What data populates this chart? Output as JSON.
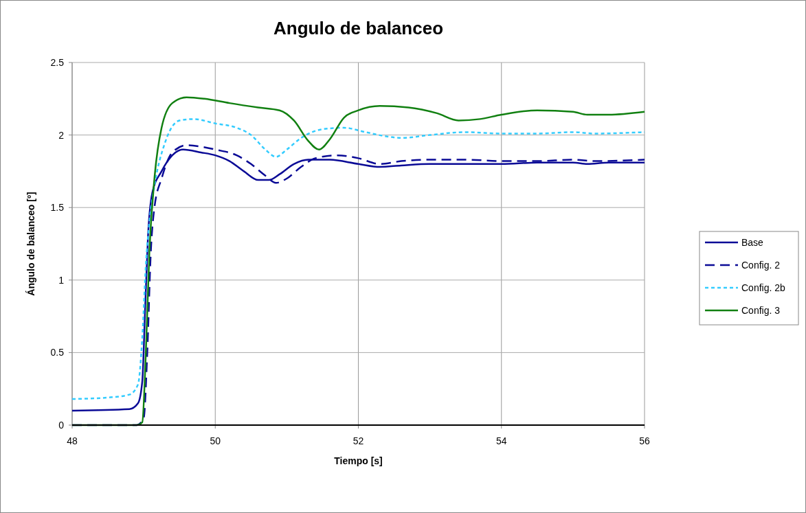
{
  "chart_data": {
    "type": "line",
    "title": "Angulo de balanceo",
    "xlabel": "Tiempo [s]",
    "ylabel": "Ángulo de balanceo [º]",
    "xlim": [
      48,
      56
    ],
    "xticks": [
      48,
      50,
      52,
      54,
      56
    ],
    "ylim": [
      0,
      2.5
    ],
    "yticks": [
      0,
      0.5,
      1,
      1.5,
      2,
      2.5
    ],
    "grid": true,
    "legend": "right",
    "marker": "none",
    "series": [
      {
        "name": "Base",
        "color": "#0a0a96",
        "line_style": "solid",
        "x": [
          48,
          48.8,
          48.92,
          48.98,
          49.02,
          49.06,
          49.12,
          49.25,
          49.4,
          49.55,
          49.8,
          50,
          50.2,
          50.4,
          50.6,
          50.75,
          50.9,
          51.1,
          51.3,
          51.6,
          52,
          52.3,
          52.6,
          53,
          53.5,
          54,
          54.5,
          55,
          55.2,
          55.5,
          56
        ],
        "values": [
          0.1,
          0.11,
          0.15,
          0.3,
          0.8,
          1.3,
          1.6,
          1.75,
          1.86,
          1.9,
          1.88,
          1.86,
          1.82,
          1.75,
          1.69,
          1.69,
          1.73,
          1.8,
          1.83,
          1.83,
          1.8,
          1.78,
          1.79,
          1.8,
          1.8,
          1.8,
          1.81,
          1.81,
          1.8,
          1.81,
          1.81
        ]
      },
      {
        "name": "Config. 2",
        "color": "#0a0a96",
        "line_style": "dashed",
        "x": [
          48,
          48.9,
          49,
          49.05,
          49.1,
          49.15,
          49.25,
          49.4,
          49.6,
          49.8,
          50,
          50.3,
          50.5,
          50.7,
          50.85,
          51,
          51.2,
          51.4,
          51.7,
          52,
          52.3,
          52.6,
          53,
          53.5,
          54,
          54.5,
          55,
          55.3,
          56
        ],
        "values": [
          0,
          0,
          0.05,
          0.5,
          1.2,
          1.5,
          1.7,
          1.88,
          1.93,
          1.92,
          1.9,
          1.86,
          1.8,
          1.72,
          1.67,
          1.7,
          1.78,
          1.84,
          1.86,
          1.84,
          1.8,
          1.82,
          1.83,
          1.83,
          1.82,
          1.82,
          1.83,
          1.82,
          1.83
        ]
      },
      {
        "name": "Config. 2b",
        "color": "#33ccff",
        "line_style": "dotted",
        "x": [
          48,
          48.5,
          48.8,
          48.92,
          48.98,
          49.03,
          49.08,
          49.15,
          49.3,
          49.5,
          49.7,
          50,
          50.3,
          50.5,
          50.7,
          50.85,
          51,
          51.2,
          51.5,
          51.8,
          52.1,
          52.4,
          52.6,
          53,
          53.5,
          54,
          54.5,
          55,
          55.3,
          56
        ],
        "values": [
          0.18,
          0.19,
          0.21,
          0.28,
          0.6,
          1.1,
          1.4,
          1.65,
          1.95,
          2.1,
          2.11,
          2.08,
          2.05,
          2,
          1.9,
          1.85,
          1.9,
          1.98,
          2.04,
          2.05,
          2.02,
          1.99,
          1.98,
          2,
          2.02,
          2.01,
          2.01,
          2.02,
          2.01,
          2.02
        ]
      },
      {
        "name": "Config. 3",
        "color": "#118011",
        "line_style": "solid",
        "x": [
          48,
          48.9,
          48.98,
          49.03,
          49.08,
          49.15,
          49.25,
          49.4,
          49.6,
          49.85,
          50.2,
          50.6,
          50.9,
          51.1,
          51.3,
          51.45,
          51.6,
          51.8,
          52,
          52.3,
          52.7,
          53.1,
          53.4,
          53.7,
          54,
          54.5,
          55,
          55.2,
          55.5,
          56
        ],
        "values": [
          0,
          0,
          0.02,
          0.5,
          1.2,
          1.7,
          2.05,
          2.22,
          2.26,
          2.25,
          2.22,
          2.19,
          2.17,
          2.1,
          1.96,
          1.9,
          1.97,
          2.12,
          2.17,
          2.2,
          2.19,
          2.15,
          2.1,
          2.11,
          2.14,
          2.17,
          2.16,
          2.14,
          2.14,
          2.16
        ]
      }
    ]
  }
}
